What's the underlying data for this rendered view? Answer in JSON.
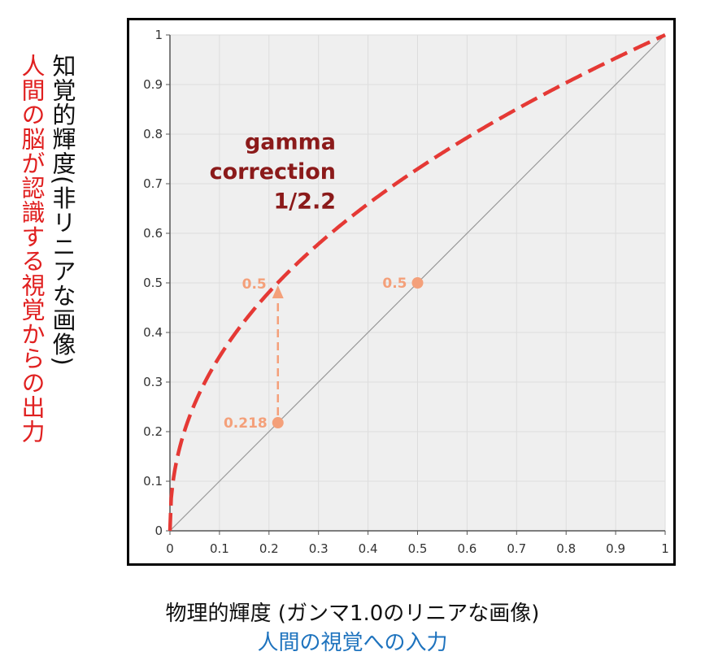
{
  "labels": {
    "y_main": "知覚的輝度(非リニアな画像)",
    "y_sub": "人間の脳が認識する視覚からの出力",
    "x_main": "物理的輝度 (ガンマ1.0のリニアな画像)",
    "x_sub": "人間の視覚への入力"
  },
  "colors": {
    "curve": "#e53935",
    "annotation": "#f4a07a",
    "gamma_text": "#8b1a1a",
    "x_sub": "#1e73be",
    "y_sub": "#e02020"
  },
  "chart_data": {
    "type": "line",
    "title": "",
    "xlim": [
      0,
      1
    ],
    "ylim": [
      0,
      1
    ],
    "x_ticks": [
      "0",
      "0.1",
      "0.2",
      "0.3",
      "0.4",
      "0.5",
      "0.6",
      "0.7",
      "0.8",
      "0.9",
      "1"
    ],
    "y_ticks": [
      "0",
      "0.1",
      "0.2",
      "0.3",
      "0.4",
      "0.5",
      "0.6",
      "0.7",
      "0.8",
      "0.9",
      "1"
    ],
    "grid": true,
    "series": [
      {
        "gamma": 0.4545,
        "style": "dashed"
      },
      {
        "x": [
          0,
          1
        ],
        "y": [
          0,
          1
        ],
        "style": "solid"
      }
    ],
    "annotation_text": [
      "gamma",
      "correction",
      "1/2.2"
    ],
    "points": [
      {
        "x": 0.218,
        "y": 0.218,
        "label": "0.218"
      },
      {
        "x": 0.5,
        "y": 0.5,
        "label": "0.5"
      }
    ],
    "arrow": {
      "x": 0.218,
      "from": 0.218,
      "to": 0.5,
      "label": "0.5"
    }
  }
}
